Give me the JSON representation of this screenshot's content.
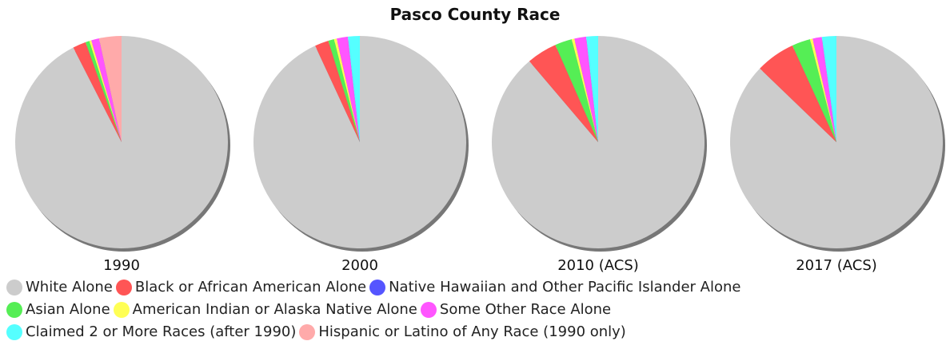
{
  "chart_data": {
    "type": "pie",
    "title": "Pasco County Race",
    "categories": [
      "White Alone",
      "Black or African American Alone",
      "Native Hawaiian and Other Pacific Islander Alone",
      "Asian Alone",
      "American Indian or Alaska Native Alone",
      "Some Other Race Alone",
      "Claimed 2 or More Races (after 1990)",
      "Hispanic or Latino of Any Race (1990 only)"
    ],
    "colors": [
      "#cccccc",
      "#ff5555",
      "#5555ff",
      "#55ee55",
      "#ffff55",
      "#ff55ff",
      "#55ffff",
      "#ffaaaa"
    ],
    "pies": [
      {
        "label": "1990",
        "values": [
          92.5,
          2.0,
          0.0,
          0.6,
          0.3,
          1.2,
          0.0,
          3.4
        ]
      },
      {
        "label": "2000",
        "values": [
          93.1,
          2.1,
          0.0,
          0.9,
          0.4,
          1.7,
          1.8,
          0.0
        ]
      },
      {
        "label": "2010 (ACS)",
        "values": [
          88.8,
          4.6,
          0.0,
          2.6,
          0.4,
          1.8,
          1.8,
          0.0
        ]
      },
      {
        "label": "2017 (ACS)",
        "values": [
          87.2,
          6.0,
          0.0,
          2.8,
          0.4,
          1.4,
          2.2,
          0.0
        ]
      }
    ],
    "legend_placement": "bottom"
  },
  "legend_rows": [
    [
      0,
      1,
      2
    ],
    [
      3,
      4,
      5
    ],
    [
      6,
      7
    ]
  ]
}
